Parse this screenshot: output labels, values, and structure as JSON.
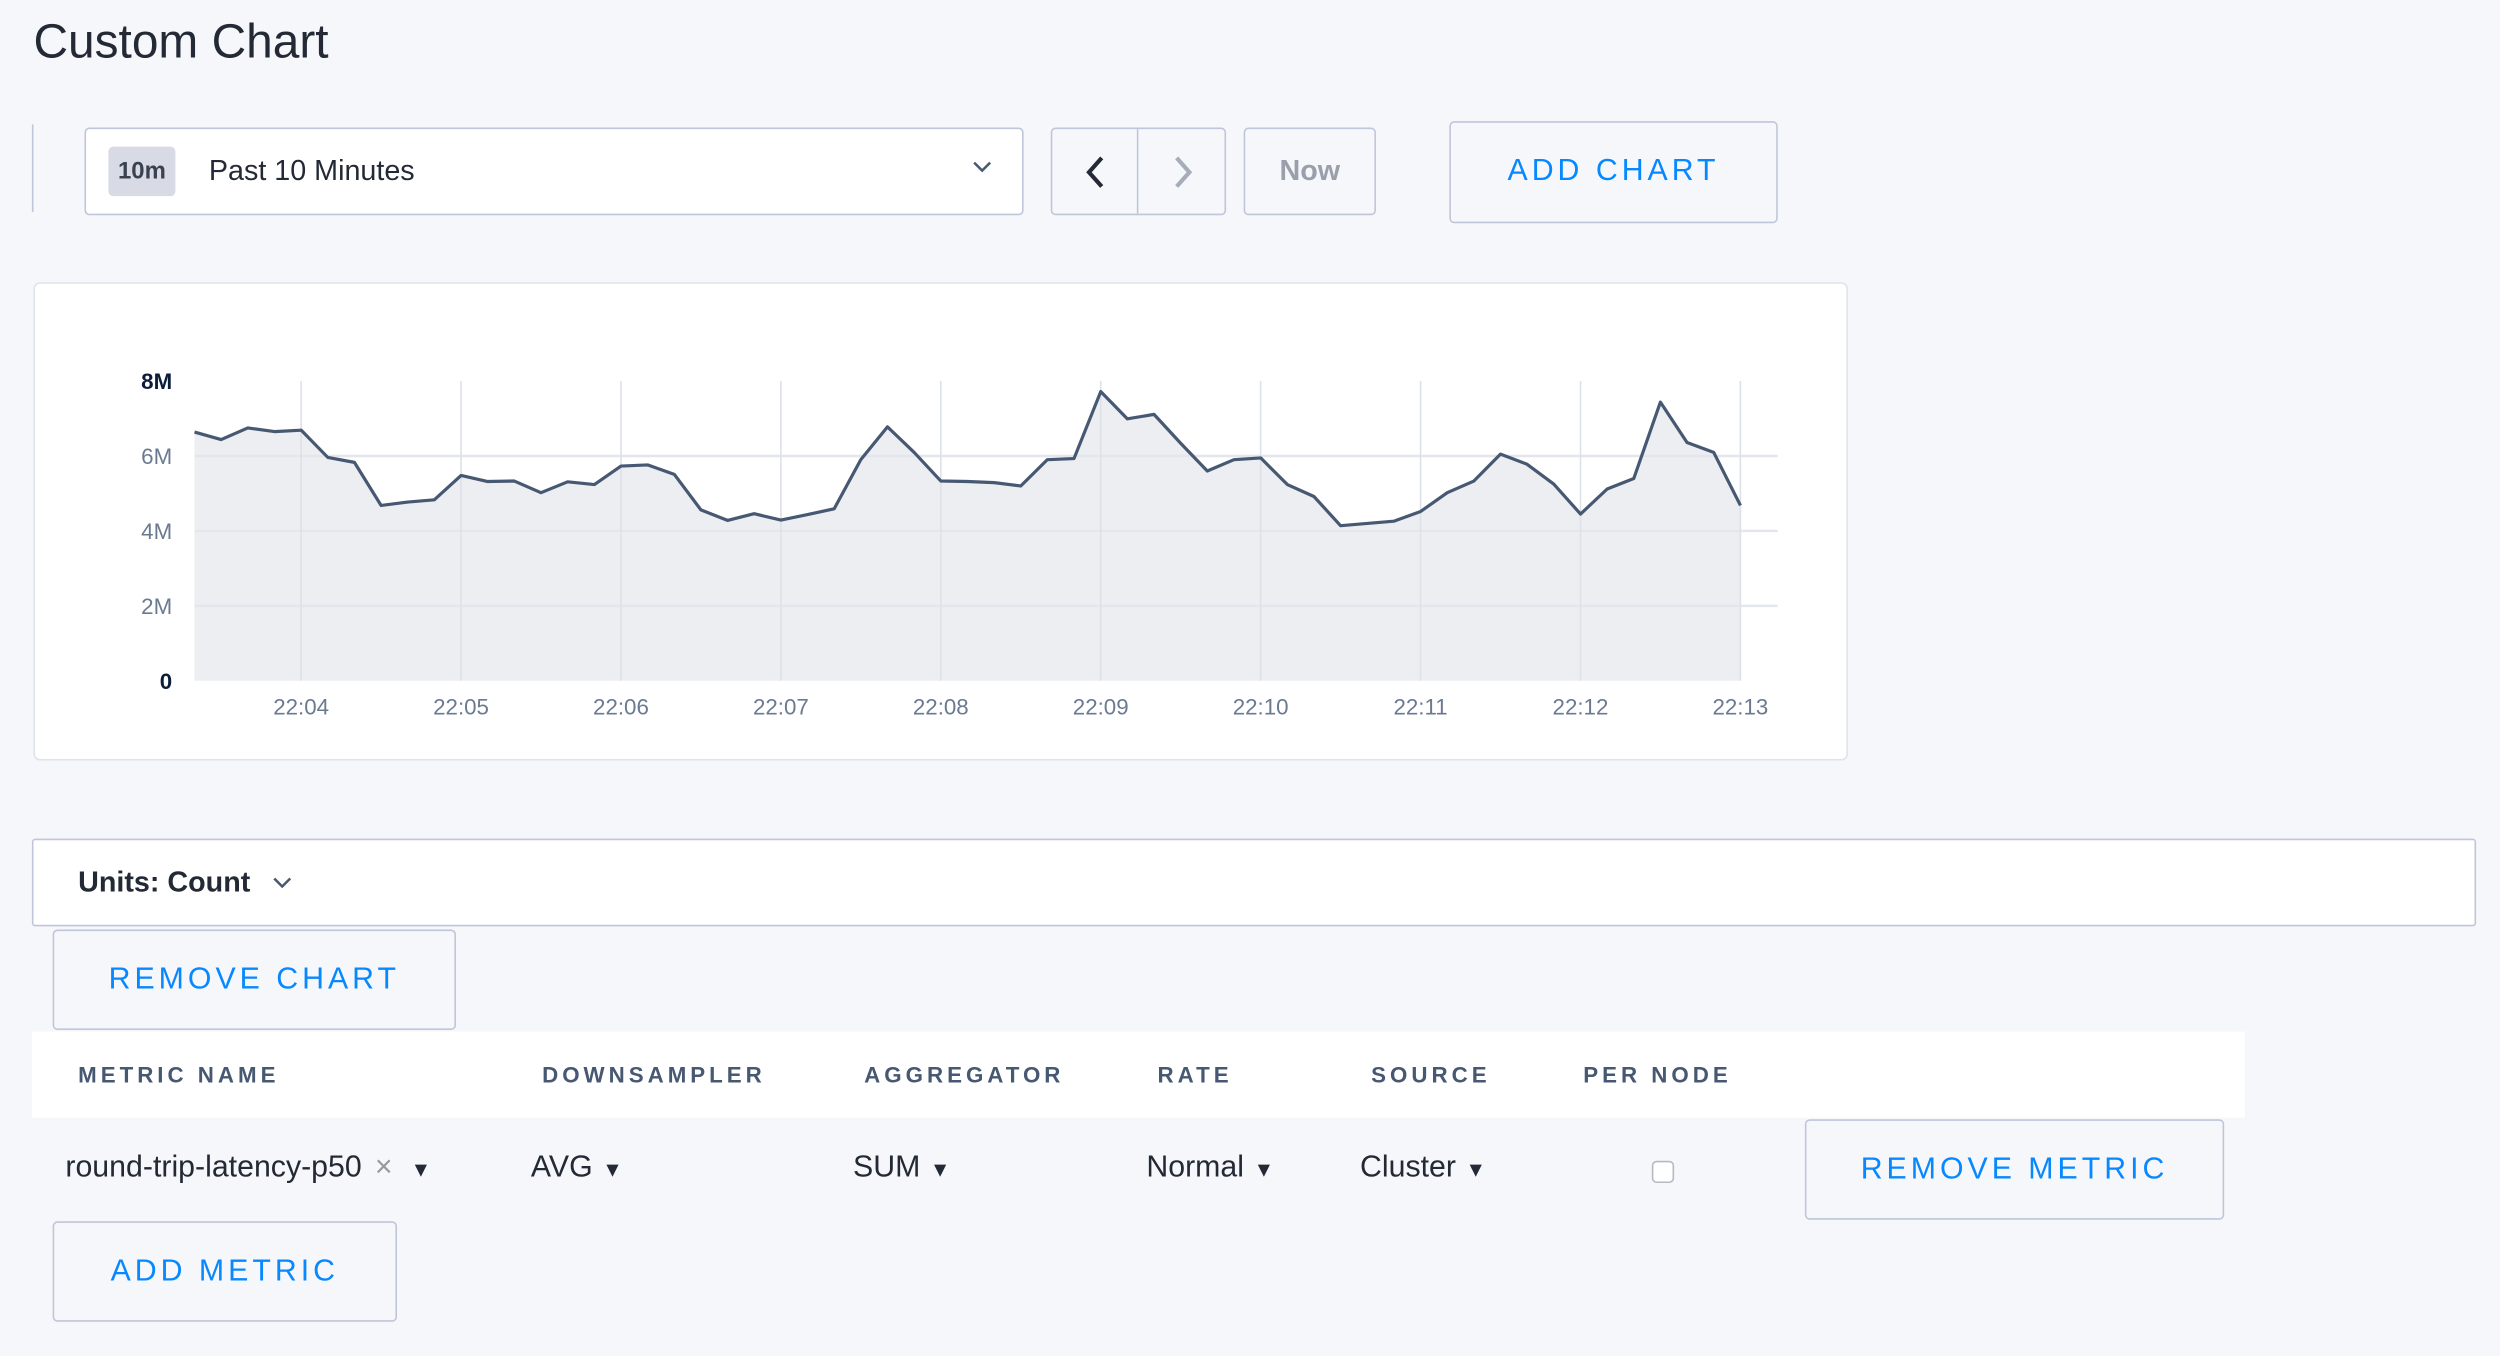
{
  "page": {
    "title": "Custom Chart"
  },
  "timeframe": {
    "badge": "10m",
    "label": "Past 10 Minutes",
    "prev_icon": "chevron-left",
    "next_icon": "chevron-right",
    "now_label": "Now"
  },
  "toolbar": {
    "add_chart_label": "ADD CHART"
  },
  "units": {
    "label": "Units: Count"
  },
  "chart_actions": {
    "remove_chart_label": "REMOVE CHART"
  },
  "metrics_table": {
    "headers": [
      "METRIC NAME",
      "DOWNSAMPLER",
      "AGGREGATOR",
      "RATE",
      "SOURCE",
      "PER NODE"
    ],
    "rows": [
      {
        "metric_name": "round-trip-latency-p50",
        "clear_icon": "×",
        "downsampler": "AVG",
        "aggregator": "SUM",
        "rate": "Normal",
        "source": "Cluster",
        "per_node": false,
        "remove_label": "REMOVE METRIC"
      }
    ],
    "add_metric_label": "ADD METRIC"
  },
  "colors": {
    "accent": "#0788ff",
    "line": "#475872",
    "area": "#eceef2",
    "border": "#c0c6d9"
  },
  "chart_data": {
    "type": "area",
    "title": "",
    "xlabel": "",
    "ylabel": "",
    "ylim": [
      0,
      8000000
    ],
    "yticks": [
      "0",
      "2M",
      "4M",
      "6M",
      "8M"
    ],
    "ytick_values": [
      0,
      2000000,
      4000000,
      6000000,
      8000000
    ],
    "xticks": [
      "22:04",
      "22:05",
      "22:06",
      "22:07",
      "22:08",
      "22:09",
      "22:10",
      "22:11",
      "22:12",
      "22:13"
    ],
    "x_start": "22:03:20",
    "x_interval_seconds": 10,
    "grid": true,
    "values": [
      6.64,
      6.44,
      6.75,
      6.65,
      6.69,
      5.96,
      5.83,
      4.68,
      4.77,
      4.83,
      5.48,
      5.32,
      5.33,
      5.02,
      5.31,
      5.24,
      5.73,
      5.76,
      5.51,
      4.56,
      4.28,
      4.46,
      4.29,
      4.44,
      4.59,
      5.9,
      6.78,
      6.1,
      5.33,
      5.32,
      5.29,
      5.2,
      5.9,
      5.93,
      7.72,
      6.99,
      7.11,
      6.34,
      5.6,
      5.9,
      5.95,
      5.24,
      4.92,
      4.14,
      4.2,
      4.26,
      4.52,
      5.02,
      5.33,
      6.05,
      5.78,
      5.25,
      4.45,
      5.12,
      5.4,
      7.44,
      6.36,
      6.1,
      4.68
    ],
    "values_unit": "M"
  }
}
